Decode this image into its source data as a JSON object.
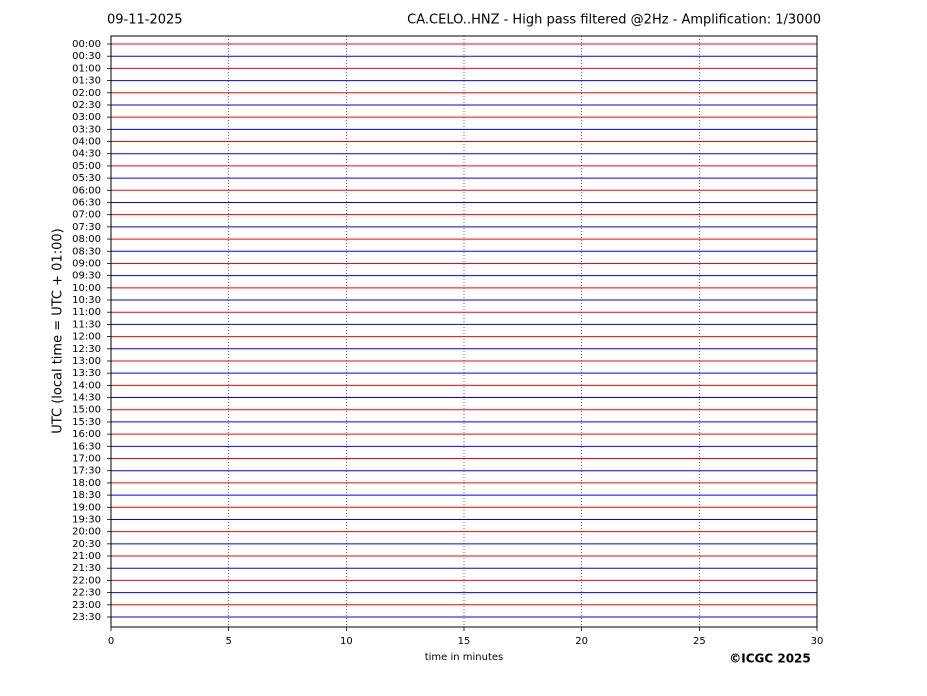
{
  "chart_data": {
    "type": "helicorder",
    "date": "09-11-2025",
    "title": "CA.CELO..HNZ - High pass filtered @2Hz - Amplification: 1/3000",
    "ylabel": "UTC (local time = UTC + 01:00)",
    "xlabel": "time in minutes",
    "copyright": "©ICGC 2025",
    "categories": [
      "00:00",
      "00:30",
      "01:00",
      "01:30",
      "02:00",
      "02:30",
      "03:00",
      "03:30",
      "04:00",
      "04:30",
      "05:00",
      "05:30",
      "06:00",
      "06:30",
      "07:00",
      "07:30",
      "08:00",
      "08:30",
      "09:00",
      "09:30",
      "10:00",
      "10:30",
      "11:00",
      "11:30",
      "12:00",
      "12:30",
      "13:00",
      "13:30",
      "14:00",
      "14:30",
      "15:00",
      "15:30",
      "16:00",
      "16:30",
      "17:00",
      "17:30",
      "18:00",
      "18:30",
      "19:00",
      "19:30",
      "20:00",
      "20:30",
      "21:00",
      "21:30",
      "22:00",
      "22:30",
      "23:00",
      "23:30"
    ],
    "trace_colors": [
      "#ff0000",
      "#0000ff"
    ],
    "xlim": [
      0,
      30
    ],
    "xticks": [
      0,
      5,
      10,
      15,
      20,
      25,
      30
    ],
    "grid": true
  }
}
